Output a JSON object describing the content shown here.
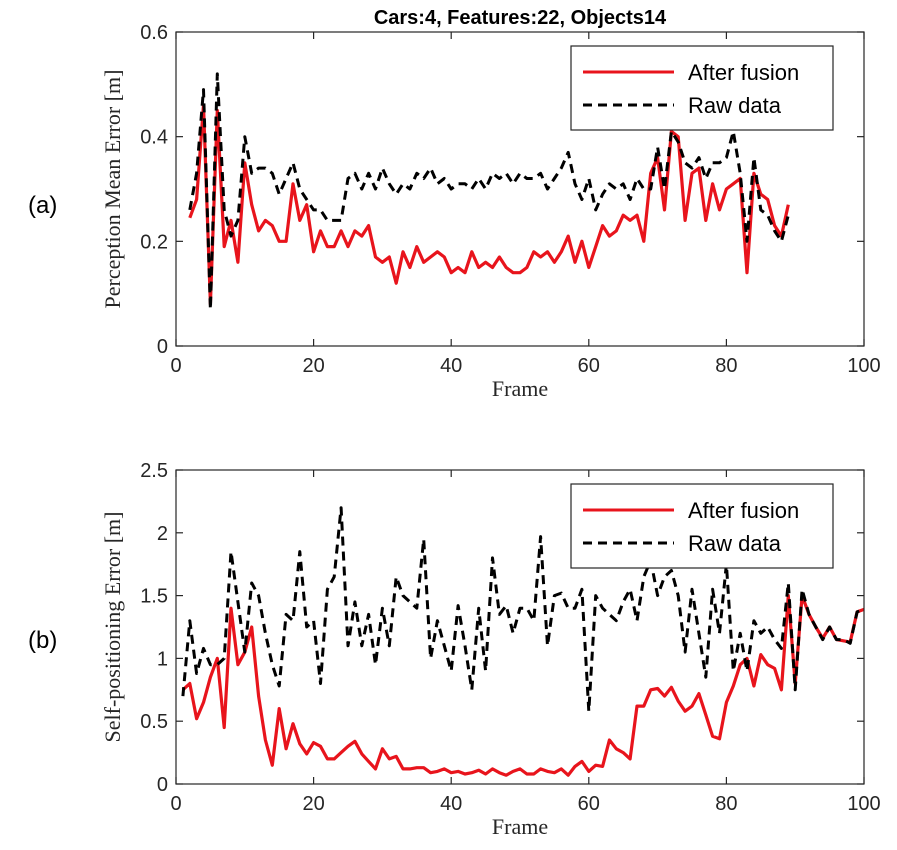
{
  "chart_data": [
    {
      "type": "line",
      "panel_label": "(a)",
      "title": "Cars:4, Features:22, Objects14",
      "xlabel": "Frame",
      "ylabel": "Perception Mean Error [m]",
      "xlim": [
        0,
        100
      ],
      "ylim": [
        0,
        0.6
      ],
      "xticks": [
        0,
        20,
        40,
        60,
        80,
        100
      ],
      "xtick_labels": [
        "0",
        "20",
        "40",
        "60",
        "80",
        "100"
      ],
      "yticks": [
        0,
        0.2,
        0.4,
        0.6
      ],
      "ytick_labels": [
        "0",
        "0.2",
        "0.4",
        "0.6"
      ],
      "legend_position": "top-right",
      "series": [
        {
          "name": "After fusion",
          "color": "#e8141c",
          "style": "solid",
          "x": [
            2,
            3,
            4,
            5,
            6,
            7,
            8,
            9,
            10,
            11,
            12,
            13,
            14,
            15,
            16,
            17,
            18,
            19,
            20,
            21,
            22,
            23,
            24,
            25,
            26,
            27,
            28,
            29,
            30,
            31,
            32,
            33,
            34,
            35,
            36,
            37,
            38,
            39,
            40,
            41,
            42,
            43,
            44,
            45,
            46,
            47,
            48,
            49,
            50,
            51,
            52,
            53,
            54,
            55,
            56,
            57,
            58,
            59,
            60,
            61,
            62,
            63,
            64,
            65,
            66,
            67,
            68,
            69,
            70,
            71,
            72,
            73,
            74,
            75,
            76,
            77,
            78,
            79,
            80,
            81,
            82,
            83,
            84,
            85,
            86,
            87,
            88,
            89
          ],
          "y": [
            0.245,
            0.28,
            0.46,
            0.08,
            0.45,
            0.19,
            0.24,
            0.16,
            0.35,
            0.27,
            0.22,
            0.24,
            0.23,
            0.2,
            0.2,
            0.31,
            0.24,
            0.27,
            0.18,
            0.22,
            0.19,
            0.19,
            0.22,
            0.19,
            0.22,
            0.21,
            0.23,
            0.17,
            0.16,
            0.17,
            0.12,
            0.18,
            0.15,
            0.19,
            0.16,
            0.17,
            0.18,
            0.17,
            0.14,
            0.15,
            0.14,
            0.18,
            0.15,
            0.16,
            0.15,
            0.17,
            0.15,
            0.14,
            0.14,
            0.15,
            0.18,
            0.17,
            0.18,
            0.16,
            0.18,
            0.21,
            0.16,
            0.2,
            0.15,
            0.19,
            0.23,
            0.21,
            0.22,
            0.25,
            0.24,
            0.25,
            0.2,
            0.33,
            0.36,
            0.26,
            0.41,
            0.4,
            0.24,
            0.33,
            0.34,
            0.24,
            0.31,
            0.26,
            0.3,
            0.31,
            0.32,
            0.14,
            0.33,
            0.29,
            0.28,
            0.23,
            0.21,
            0.27
          ]
        },
        {
          "name": "Raw data",
          "color": "#000000",
          "style": "dashed",
          "x": [
            2,
            3,
            4,
            5,
            6,
            7,
            8,
            9,
            10,
            11,
            12,
            13,
            14,
            15,
            16,
            17,
            18,
            19,
            20,
            21,
            22,
            23,
            24,
            25,
            26,
            27,
            28,
            29,
            30,
            31,
            32,
            33,
            34,
            35,
            36,
            37,
            38,
            39,
            40,
            41,
            42,
            43,
            44,
            45,
            46,
            47,
            48,
            49,
            50,
            51,
            52,
            53,
            54,
            55,
            56,
            57,
            58,
            59,
            60,
            61,
            62,
            63,
            64,
            65,
            66,
            67,
            68,
            69,
            70,
            71,
            72,
            73,
            74,
            75,
            76,
            77,
            78,
            79,
            80,
            81,
            82,
            83,
            84,
            85,
            86,
            87,
            88,
            89
          ],
          "y": [
            0.26,
            0.33,
            0.49,
            0.07,
            0.52,
            0.26,
            0.21,
            0.24,
            0.4,
            0.33,
            0.34,
            0.34,
            0.33,
            0.29,
            0.32,
            0.35,
            0.3,
            0.28,
            0.26,
            0.26,
            0.24,
            0.24,
            0.24,
            0.32,
            0.33,
            0.3,
            0.33,
            0.3,
            0.34,
            0.31,
            0.29,
            0.31,
            0.3,
            0.33,
            0.32,
            0.34,
            0.31,
            0.32,
            0.3,
            0.31,
            0.31,
            0.3,
            0.32,
            0.3,
            0.33,
            0.32,
            0.33,
            0.31,
            0.33,
            0.32,
            0.32,
            0.33,
            0.3,
            0.32,
            0.34,
            0.37,
            0.31,
            0.28,
            0.32,
            0.26,
            0.29,
            0.31,
            0.3,
            0.31,
            0.28,
            0.32,
            0.3,
            0.3,
            0.38,
            0.3,
            0.41,
            0.39,
            0.35,
            0.34,
            0.36,
            0.32,
            0.35,
            0.35,
            0.36,
            0.41,
            0.33,
            0.2,
            0.36,
            0.26,
            0.25,
            0.22,
            0.2,
            0.25
          ]
        }
      ]
    },
    {
      "type": "line",
      "panel_label": "(b)",
      "title": "",
      "xlabel": "Frame",
      "ylabel": "Self-positioning Error [m]",
      "xlim": [
        0,
        100
      ],
      "ylim": [
        0,
        2.5
      ],
      "xticks": [
        0,
        20,
        40,
        60,
        80,
        100
      ],
      "xtick_labels": [
        "0",
        "20",
        "40",
        "60",
        "80",
        "100"
      ],
      "yticks": [
        0,
        0.5,
        1,
        1.5,
        2,
        2.5
      ],
      "ytick_labels": [
        "0",
        "0.5",
        "1",
        "1.5",
        "2",
        "2.5"
      ],
      "legend_position": "top-right",
      "series": [
        {
          "name": "After fusion",
          "color": "#e8141c",
          "style": "solid",
          "x": [
            1,
            2,
            3,
            4,
            5,
            6,
            7,
            8,
            9,
            10,
            11,
            12,
            13,
            14,
            15,
            16,
            17,
            18,
            19,
            20,
            21,
            22,
            23,
            24,
            25,
            26,
            27,
            28,
            29,
            30,
            31,
            32,
            33,
            34,
            35,
            36,
            37,
            38,
            39,
            40,
            41,
            42,
            43,
            44,
            45,
            46,
            47,
            48,
            49,
            50,
            51,
            52,
            53,
            54,
            55,
            56,
            57,
            58,
            59,
            60,
            61,
            62,
            63,
            64,
            65,
            66,
            67,
            68,
            69,
            70,
            71,
            72,
            73,
            74,
            75,
            76,
            77,
            78,
            79,
            80,
            81,
            82,
            83,
            84,
            85,
            86,
            87,
            88,
            89,
            90,
            91,
            92,
            93,
            94,
            95,
            96,
            97,
            98,
            99,
            100
          ],
          "y": [
            0.75,
            0.8,
            0.52,
            0.65,
            0.85,
            1.0,
            0.45,
            1.4,
            0.95,
            1.05,
            1.25,
            0.7,
            0.35,
            0.15,
            0.6,
            0.28,
            0.48,
            0.32,
            0.24,
            0.33,
            0.3,
            0.2,
            0.2,
            0.25,
            0.3,
            0.34,
            0.24,
            0.18,
            0.12,
            0.28,
            0.2,
            0.22,
            0.12,
            0.12,
            0.13,
            0.13,
            0.09,
            0.1,
            0.12,
            0.09,
            0.1,
            0.08,
            0.09,
            0.11,
            0.08,
            0.12,
            0.09,
            0.07,
            0.1,
            0.12,
            0.08,
            0.08,
            0.12,
            0.1,
            0.09,
            0.12,
            0.07,
            0.14,
            0.18,
            0.1,
            0.15,
            0.14,
            0.35,
            0.28,
            0.25,
            0.2,
            0.62,
            0.62,
            0.75,
            0.76,
            0.7,
            0.77,
            0.66,
            0.58,
            0.62,
            0.72,
            0.55,
            0.38,
            0.36,
            0.65,
            0.78,
            0.95,
            1.0,
            0.78,
            1.03,
            0.95,
            0.92,
            0.75,
            1.5,
            0.8,
            1.5,
            1.35,
            1.25,
            1.16,
            1.25,
            1.15,
            1.14,
            1.13,
            1.37,
            1.39
          ]
        },
        {
          "name": "Raw data",
          "color": "#000000",
          "style": "dashed",
          "x": [
            1,
            2,
            3,
            4,
            5,
            6,
            7,
            8,
            9,
            10,
            11,
            12,
            13,
            14,
            15,
            16,
            17,
            18,
            19,
            20,
            21,
            22,
            23,
            24,
            25,
            26,
            27,
            28,
            29,
            30,
            31,
            32,
            33,
            34,
            35,
            36,
            37,
            38,
            39,
            40,
            41,
            42,
            43,
            44,
            45,
            46,
            47,
            48,
            49,
            50,
            51,
            52,
            53,
            54,
            55,
            56,
            57,
            58,
            59,
            60,
            61,
            62,
            63,
            64,
            65,
            66,
            67,
            68,
            69,
            70,
            71,
            72,
            73,
            74,
            75,
            76,
            77,
            78,
            79,
            80,
            81,
            82,
            83,
            84,
            85,
            86,
            87,
            88,
            89,
            90,
            91,
            92,
            93,
            94,
            95,
            96,
            97,
            98,
            99,
            100
          ],
          "y": [
            0.7,
            1.3,
            0.88,
            1.08,
            0.95,
            0.95,
            1.0,
            1.85,
            1.45,
            1.05,
            1.6,
            1.5,
            1.2,
            0.95,
            0.78,
            1.35,
            1.3,
            1.85,
            1.25,
            1.3,
            0.8,
            1.55,
            1.65,
            2.2,
            1.1,
            1.45,
            1.1,
            1.35,
            0.95,
            1.4,
            1.1,
            1.65,
            1.5,
            1.45,
            1.4,
            1.95,
            1.0,
            1.3,
            1.1,
            0.9,
            1.42,
            1.1,
            0.75,
            1.4,
            0.9,
            1.8,
            1.35,
            1.42,
            1.2,
            1.4,
            1.4,
            1.3,
            1.97,
            1.1,
            1.5,
            1.52,
            1.4,
            1.4,
            1.55,
            0.58,
            1.5,
            1.4,
            1.35,
            1.3,
            1.45,
            1.55,
            1.3,
            1.65,
            1.78,
            1.5,
            1.65,
            1.7,
            1.5,
            1.05,
            1.55,
            1.2,
            0.85,
            1.55,
            1.2,
            1.75,
            0.9,
            1.2,
            0.9,
            1.3,
            1.2,
            1.25,
            1.15,
            1.08,
            1.6,
            0.75,
            1.55,
            1.35,
            1.25,
            1.15,
            1.25,
            1.15,
            1.15,
            1.12,
            1.37,
            1.39
          ]
        }
      ]
    }
  ]
}
